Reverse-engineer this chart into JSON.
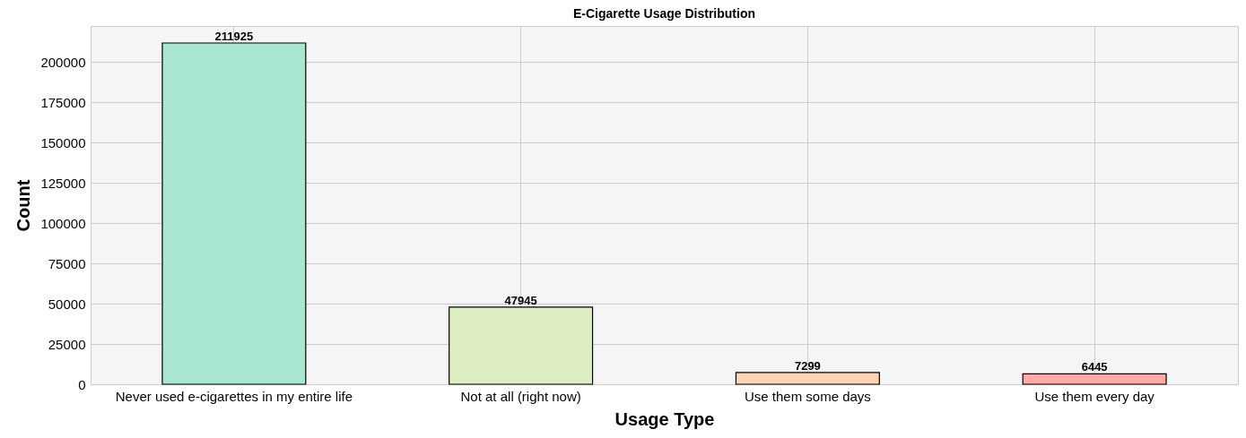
{
  "chart_data": {
    "type": "bar",
    "title": "E-Cigarette Usage Distribution",
    "xlabel": "Usage Type",
    "ylabel": "Count",
    "categories": [
      "Never used e-cigarettes in my entire life",
      "Not at all (right now)",
      "Use them some days",
      "Use them every day"
    ],
    "values": [
      211925,
      47945,
      7299,
      6445
    ],
    "colors": [
      "#a8e6cf",
      "#dcedc1",
      "#ffd3b6",
      "#ffaaa5"
    ],
    "ylim": [
      0,
      222500
    ],
    "yticks": [
      0,
      25000,
      50000,
      75000,
      100000,
      125000,
      150000,
      175000,
      200000
    ],
    "grid": true,
    "data_labels": true
  }
}
